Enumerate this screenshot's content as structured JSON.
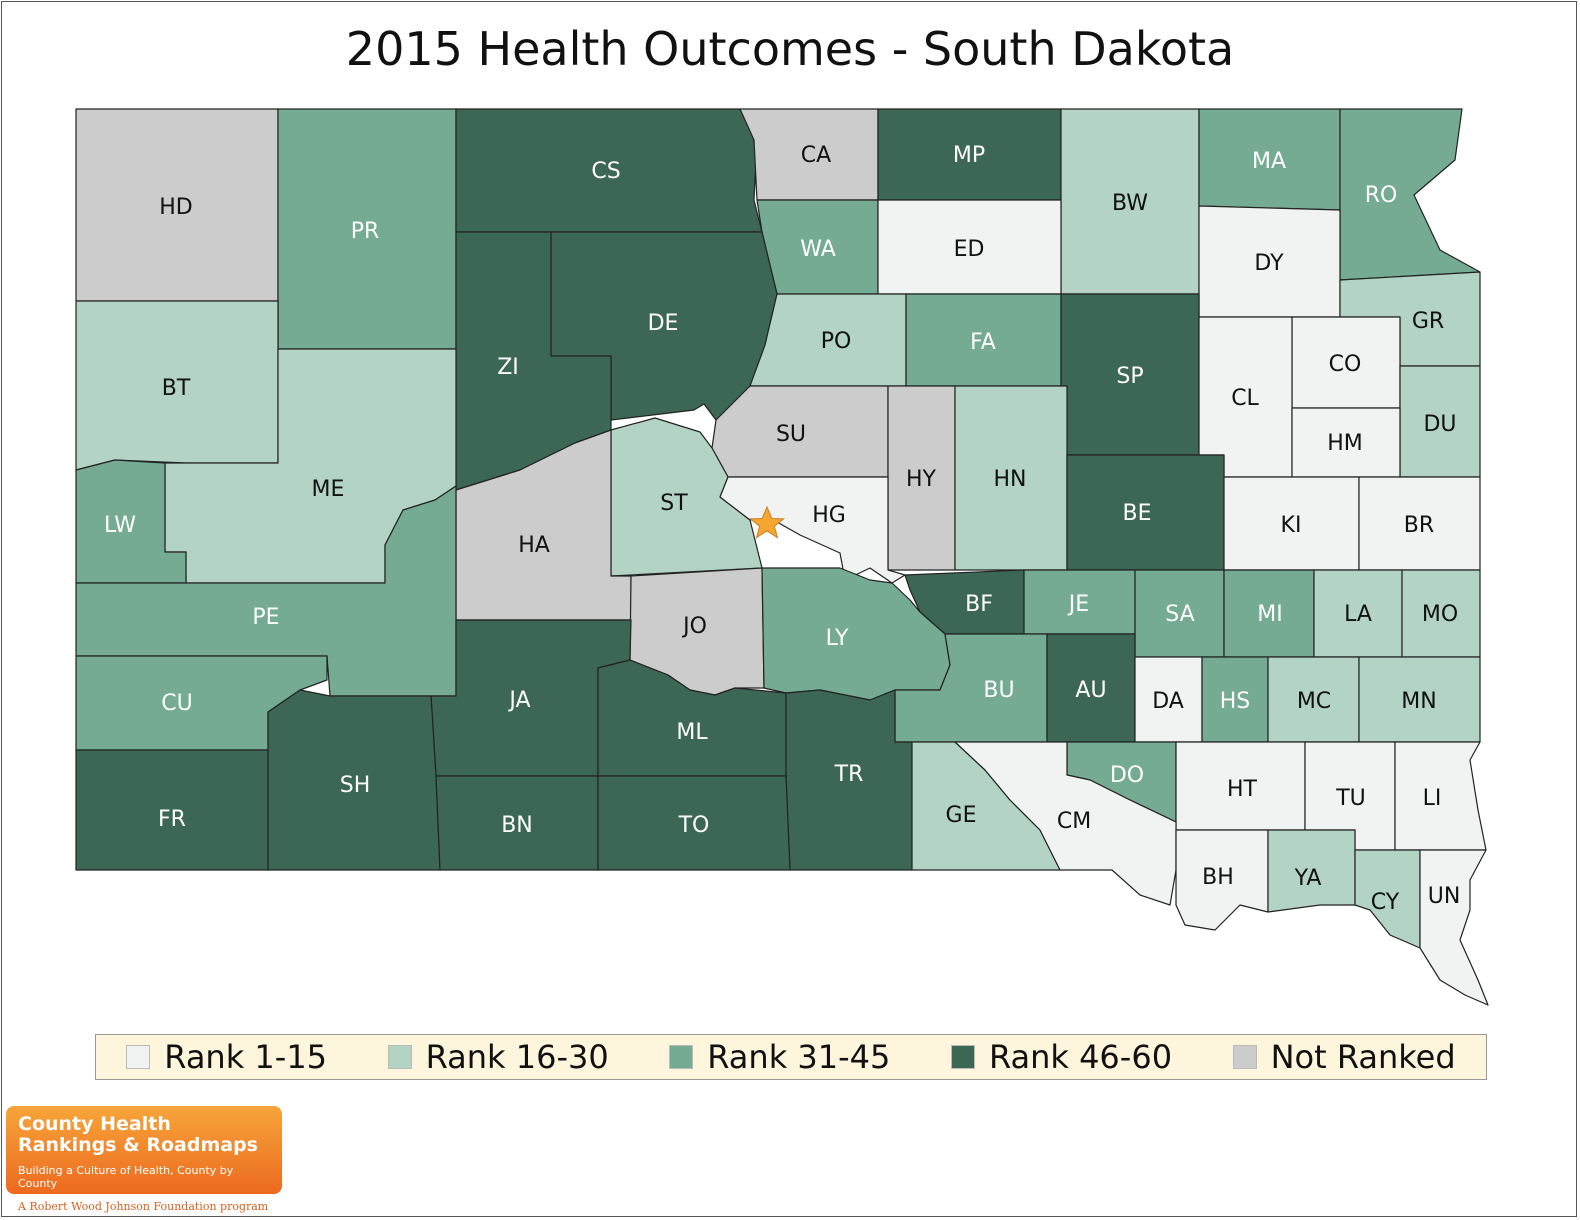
{
  "title": "2015 Health Outcomes - South Dakota",
  "colors": {
    "rank_1_15": "#f1f3f2",
    "rank_16_30": "#b3d3c5",
    "rank_31_45": "#74ab92",
    "rank_46_60": "#3d6755",
    "not_ranked": "#cccccc",
    "border": "#222222",
    "star": "#f7a531"
  },
  "legend": [
    {
      "label": "Rank 1-15",
      "class": "rank_1_15"
    },
    {
      "label": "Rank 16-30",
      "class": "rank_16_30"
    },
    {
      "label": "Rank 31-45",
      "class": "rank_31_45"
    },
    {
      "label": "Rank 46-60",
      "class": "rank_46_60"
    },
    {
      "label": "Not Ranked",
      "class": "not_ranked"
    }
  ],
  "counties": [
    {
      "abbr": "HD",
      "rank_class": "not_ranked"
    },
    {
      "abbr": "PR",
      "rank_class": "rank_31_45"
    },
    {
      "abbr": "CS",
      "rank_class": "rank_46_60"
    },
    {
      "abbr": "CA",
      "rank_class": "not_ranked"
    },
    {
      "abbr": "MP",
      "rank_class": "rank_46_60"
    },
    {
      "abbr": "BW",
      "rank_class": "rank_16_30"
    },
    {
      "abbr": "MA",
      "rank_class": "rank_31_45"
    },
    {
      "abbr": "RO",
      "rank_class": "rank_31_45"
    },
    {
      "abbr": "WA",
      "rank_class": "rank_31_45"
    },
    {
      "abbr": "ED",
      "rank_class": "rank_1_15"
    },
    {
      "abbr": "DY",
      "rank_class": "rank_1_15"
    },
    {
      "abbr": "GR",
      "rank_class": "rank_16_30"
    },
    {
      "abbr": "BT",
      "rank_class": "rank_16_30"
    },
    {
      "abbr": "DE",
      "rank_class": "rank_46_60"
    },
    {
      "abbr": "ZI",
      "rank_class": "rank_46_60"
    },
    {
      "abbr": "PO",
      "rank_class": "rank_16_30"
    },
    {
      "abbr": "FA",
      "rank_class": "rank_31_45"
    },
    {
      "abbr": "SP",
      "rank_class": "rank_46_60"
    },
    {
      "abbr": "CO",
      "rank_class": "rank_1_15"
    },
    {
      "abbr": "CL",
      "rank_class": "rank_1_15"
    },
    {
      "abbr": "DU",
      "rank_class": "rank_16_30"
    },
    {
      "abbr": "HM",
      "rank_class": "rank_1_15"
    },
    {
      "abbr": "SU",
      "rank_class": "not_ranked"
    },
    {
      "abbr": "ME",
      "rank_class": "rank_16_30"
    },
    {
      "abbr": "HY",
      "rank_class": "not_ranked"
    },
    {
      "abbr": "HN",
      "rank_class": "rank_16_30"
    },
    {
      "abbr": "ST",
      "rank_class": "rank_16_30"
    },
    {
      "abbr": "HG",
      "rank_class": "rank_1_15"
    },
    {
      "abbr": "BE",
      "rank_class": "rank_46_60"
    },
    {
      "abbr": "LW",
      "rank_class": "rank_31_45"
    },
    {
      "abbr": "KI",
      "rank_class": "rank_1_15"
    },
    {
      "abbr": "BR",
      "rank_class": "rank_1_15"
    },
    {
      "abbr": "HA",
      "rank_class": "not_ranked"
    },
    {
      "abbr": "PE",
      "rank_class": "rank_31_45"
    },
    {
      "abbr": "BF",
      "rank_class": "rank_46_60"
    },
    {
      "abbr": "JE",
      "rank_class": "rank_31_45"
    },
    {
      "abbr": "SA",
      "rank_class": "rank_31_45"
    },
    {
      "abbr": "MI",
      "rank_class": "rank_31_45"
    },
    {
      "abbr": "LA",
      "rank_class": "rank_16_30"
    },
    {
      "abbr": "MO",
      "rank_class": "rank_16_30"
    },
    {
      "abbr": "JO",
      "rank_class": "not_ranked"
    },
    {
      "abbr": "LY",
      "rank_class": "rank_31_45"
    },
    {
      "abbr": "CU",
      "rank_class": "rank_31_45"
    },
    {
      "abbr": "JA",
      "rank_class": "rank_46_60"
    },
    {
      "abbr": "BU",
      "rank_class": "rank_31_45"
    },
    {
      "abbr": "AU",
      "rank_class": "rank_46_60"
    },
    {
      "abbr": "DA",
      "rank_class": "rank_1_15"
    },
    {
      "abbr": "HS",
      "rank_class": "rank_31_45"
    },
    {
      "abbr": "MC",
      "rank_class": "rank_16_30"
    },
    {
      "abbr": "MN",
      "rank_class": "rank_16_30"
    },
    {
      "abbr": "ML",
      "rank_class": "rank_46_60"
    },
    {
      "abbr": "TR",
      "rank_class": "rank_46_60"
    },
    {
      "abbr": "SH",
      "rank_class": "rank_46_60"
    },
    {
      "abbr": "DO",
      "rank_class": "rank_31_45"
    },
    {
      "abbr": "HT",
      "rank_class": "rank_1_15"
    },
    {
      "abbr": "TU",
      "rank_class": "rank_1_15"
    },
    {
      "abbr": "LI",
      "rank_class": "rank_1_15"
    },
    {
      "abbr": "GE",
      "rank_class": "rank_16_30"
    },
    {
      "abbr": "CM",
      "rank_class": "rank_1_15"
    },
    {
      "abbr": "FR",
      "rank_class": "rank_46_60"
    },
    {
      "abbr": "BN",
      "rank_class": "rank_46_60"
    },
    {
      "abbr": "TO",
      "rank_class": "rank_46_60"
    },
    {
      "abbr": "BH",
      "rank_class": "rank_1_15"
    },
    {
      "abbr": "YA",
      "rank_class": "rank_16_30"
    },
    {
      "abbr": "CY",
      "rank_class": "rank_16_30"
    },
    {
      "abbr": "UN",
      "rank_class": "rank_1_15"
    }
  ],
  "capital_marker": "star-icon",
  "logo": {
    "line1": "County Health",
    "line2": "Rankings & Roadmaps",
    "tagline": "Building a Culture of Health, County by County",
    "foundation": "A Robert Wood Johnson Foundation program"
  }
}
